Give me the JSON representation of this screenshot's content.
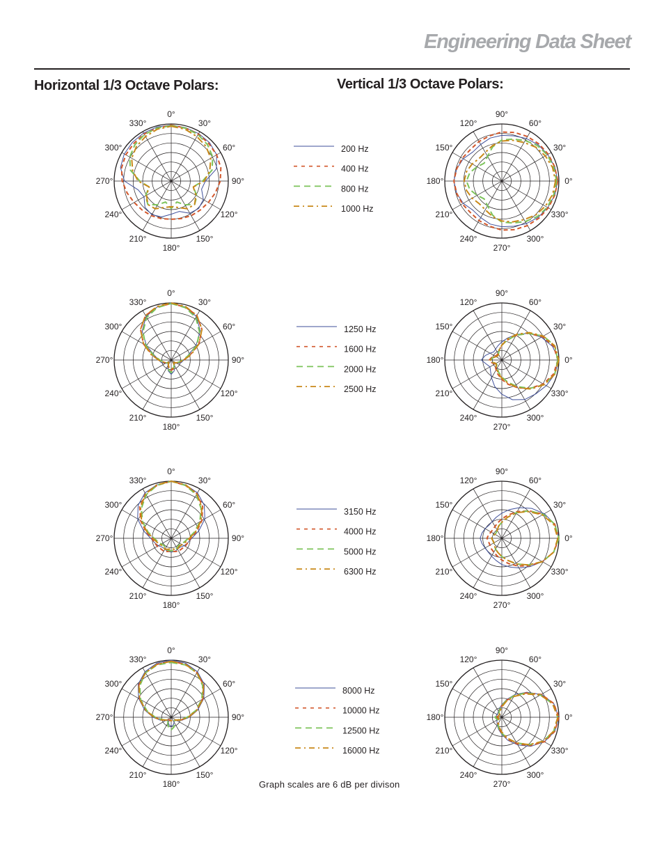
{
  "header": {
    "brand_title": "Engineering Data Sheet"
  },
  "sections": {
    "horizontal_title": "Horizontal 1/3 Octave Polars:",
    "vertical_title": "Vertical 1/3 Octave Polars:"
  },
  "footnote": "Graph scales are 6 dB per divison",
  "colors": {
    "series_1": "#3e4f9a",
    "series_2": "#d2572b",
    "series_3": "#7cc35a",
    "series_4": "#c8891a",
    "grid": "#231f20"
  },
  "horizontal_angle_labels": [
    "0°",
    "30°",
    "60°",
    "90°",
    "120°",
    "150°",
    "180°",
    "210°",
    "240°",
    "270°",
    "300°",
    "330°"
  ],
  "vertical_angle_labels": [
    "90°",
    "60°",
    "30°",
    "0°",
    "330°",
    "300°",
    "270°",
    "240°",
    "210°",
    "180°",
    "150°",
    "120°"
  ],
  "chart_data": [
    {
      "type": "polar",
      "orientation": "horizontal",
      "grid": true,
      "scale_db_per_division": 6,
      "series": [
        {
          "name": "200 Hz",
          "r": [
            0.98,
            0.97,
            0.96,
            0.95,
            0.92,
            0.82,
            0.6,
            0.55,
            0.65,
            0.68,
            0.65,
            0.55,
            0.58,
            0.65,
            0.68,
            0.65,
            0.55,
            0.6,
            0.82,
            0.92,
            0.95,
            0.96,
            0.97,
            0.98
          ]
        },
        {
          "name": "400 Hz",
          "r": [
            0.98,
            0.96,
            0.95,
            0.93,
            0.92,
            0.9,
            0.86,
            0.8,
            0.75,
            0.72,
            0.7,
            0.68,
            0.67,
            0.68,
            0.7,
            0.72,
            0.75,
            0.8,
            0.86,
            0.9,
            0.92,
            0.93,
            0.95,
            0.96
          ]
        },
        {
          "name": "800 Hz",
          "r": [
            0.97,
            0.96,
            0.94,
            0.9,
            0.84,
            0.74,
            0.55,
            0.4,
            0.52,
            0.58,
            0.48,
            0.38,
            0.48,
            0.38,
            0.48,
            0.58,
            0.52,
            0.4,
            0.55,
            0.74,
            0.84,
            0.9,
            0.94,
            0.96
          ]
        },
        {
          "name": "1000 Hz",
          "r": [
            0.96,
            0.94,
            0.9,
            0.86,
            0.8,
            0.7,
            0.58,
            0.4,
            0.5,
            0.58,
            0.56,
            0.48,
            0.45,
            0.48,
            0.56,
            0.58,
            0.5,
            0.4,
            0.58,
            0.7,
            0.8,
            0.86,
            0.9,
            0.94
          ]
        }
      ]
    },
    {
      "type": "polar",
      "orientation": "horizontal",
      "grid": true,
      "scale_db_per_division": 6,
      "series": [
        {
          "name": "1250 Hz",
          "r": [
            1.0,
            0.96,
            0.88,
            0.72,
            0.5,
            0.3,
            0.22,
            0.18,
            0.12,
            0.08,
            0.12,
            0.2,
            0.25,
            0.2,
            0.12,
            0.08,
            0.12,
            0.18,
            0.22,
            0.3,
            0.5,
            0.72,
            0.88,
            0.96
          ]
        },
        {
          "name": "1600 Hz",
          "r": [
            0.99,
            0.96,
            0.9,
            0.76,
            0.56,
            0.34,
            0.22,
            0.15,
            0.1,
            0.06,
            0.1,
            0.16,
            0.18,
            0.16,
            0.1,
            0.06,
            0.1,
            0.15,
            0.22,
            0.34,
            0.56,
            0.76,
            0.9,
            0.96
          ]
        },
        {
          "name": "2000 Hz",
          "r": [
            0.99,
            0.95,
            0.86,
            0.7,
            0.52,
            0.32,
            0.2,
            0.14,
            0.1,
            0.06,
            0.1,
            0.18,
            0.22,
            0.18,
            0.1,
            0.06,
            0.1,
            0.14,
            0.2,
            0.32,
            0.52,
            0.7,
            0.86,
            0.95
          ]
        },
        {
          "name": "2500 Hz",
          "r": [
            1.0,
            0.97,
            0.9,
            0.76,
            0.56,
            0.36,
            0.22,
            0.14,
            0.1,
            0.06,
            0.1,
            0.14,
            0.16,
            0.14,
            0.1,
            0.06,
            0.1,
            0.14,
            0.22,
            0.36,
            0.56,
            0.76,
            0.9,
            0.97
          ]
        }
      ]
    },
    {
      "type": "polar",
      "orientation": "horizontal",
      "grid": true,
      "scale_db_per_division": 6,
      "series": [
        {
          "name": "3150 Hz",
          "r": [
            1.0,
            0.97,
            0.92,
            0.82,
            0.68,
            0.5,
            0.36,
            0.3,
            0.26,
            0.22,
            0.22,
            0.24,
            0.24,
            0.24,
            0.22,
            0.22,
            0.26,
            0.3,
            0.36,
            0.5,
            0.68,
            0.82,
            0.92,
            0.97
          ]
        },
        {
          "name": "4000 Hz",
          "r": [
            1.0,
            0.96,
            0.9,
            0.78,
            0.62,
            0.46,
            0.34,
            0.3,
            0.28,
            0.26,
            0.26,
            0.24,
            0.22,
            0.24,
            0.26,
            0.26,
            0.28,
            0.3,
            0.34,
            0.46,
            0.62,
            0.78,
            0.9,
            0.96
          ]
        },
        {
          "name": "5000 Hz",
          "r": [
            1.0,
            0.96,
            0.88,
            0.74,
            0.58,
            0.42,
            0.3,
            0.24,
            0.2,
            0.18,
            0.2,
            0.22,
            0.22,
            0.22,
            0.2,
            0.18,
            0.2,
            0.24,
            0.3,
            0.42,
            0.58,
            0.74,
            0.88,
            0.96
          ]
        },
        {
          "name": "6300 Hz",
          "r": [
            1.0,
            0.97,
            0.9,
            0.76,
            0.6,
            0.44,
            0.32,
            0.26,
            0.22,
            0.2,
            0.22,
            0.2,
            0.18,
            0.2,
            0.22,
            0.2,
            0.22,
            0.26,
            0.32,
            0.44,
            0.6,
            0.76,
            0.9,
            0.97
          ]
        }
      ]
    },
    {
      "type": "polar",
      "orientation": "horizontal",
      "grid": true,
      "scale_db_per_division": 6,
      "series": [
        {
          "name": "8000 Hz",
          "r": [
            1.0,
            0.98,
            0.92,
            0.82,
            0.66,
            0.48,
            0.32,
            0.2,
            0.12,
            0.08,
            0.1,
            0.14,
            0.16,
            0.14,
            0.1,
            0.08,
            0.12,
            0.2,
            0.32,
            0.48,
            0.66,
            0.82,
            0.92,
            0.98
          ]
        },
        {
          "name": "10000 Hz",
          "r": [
            0.98,
            0.96,
            0.9,
            0.8,
            0.64,
            0.46,
            0.3,
            0.18,
            0.1,
            0.06,
            0.06,
            0.06,
            0.06,
            0.06,
            0.06,
            0.06,
            0.1,
            0.18,
            0.3,
            0.46,
            0.64,
            0.8,
            0.9,
            0.96
          ]
        },
        {
          "name": "12500 Hz",
          "r": [
            0.96,
            0.95,
            0.9,
            0.78,
            0.62,
            0.44,
            0.28,
            0.16,
            0.1,
            0.08,
            0.12,
            0.18,
            0.22,
            0.18,
            0.12,
            0.08,
            0.1,
            0.16,
            0.28,
            0.44,
            0.62,
            0.78,
            0.9,
            0.95
          ]
        },
        {
          "name": "16000 Hz",
          "r": [
            0.98,
            0.96,
            0.9,
            0.8,
            0.64,
            0.46,
            0.3,
            0.18,
            0.1,
            0.06,
            0.06,
            0.06,
            0.06,
            0.06,
            0.06,
            0.06,
            0.1,
            0.18,
            0.3,
            0.46,
            0.64,
            0.8,
            0.9,
            0.96
          ]
        }
      ]
    },
    {
      "type": "polar",
      "orientation": "vertical",
      "grid": true,
      "scale_db_per_division": 6,
      "series": [
        {
          "name": "200 Hz",
          "r": [
            0.98,
            0.96,
            0.93,
            0.9,
            0.86,
            0.82,
            0.8,
            0.78,
            0.74,
            0.72,
            0.78,
            0.82,
            0.84,
            0.82,
            0.78,
            0.72,
            0.74,
            0.78,
            0.8,
            0.82,
            0.86,
            0.9,
            0.93,
            0.96
          ]
        },
        {
          "name": "400 Hz",
          "r": [
            0.98,
            0.96,
            0.94,
            0.92,
            0.9,
            0.88,
            0.86,
            0.82,
            0.8,
            0.78,
            0.8,
            0.82,
            0.84,
            0.82,
            0.8,
            0.78,
            0.8,
            0.82,
            0.86,
            0.88,
            0.9,
            0.92,
            0.94,
            0.96
          ]
        },
        {
          "name": "800 Hz",
          "r": [
            0.96,
            0.94,
            0.92,
            0.88,
            0.82,
            0.76,
            0.72,
            0.62,
            0.5,
            0.44,
            0.5,
            0.58,
            0.62,
            0.58,
            0.5,
            0.44,
            0.5,
            0.62,
            0.72,
            0.76,
            0.82,
            0.88,
            0.92,
            0.94
          ]
        },
        {
          "name": "1000 Hz",
          "r": [
            0.94,
            0.92,
            0.88,
            0.84,
            0.78,
            0.74,
            0.7,
            0.64,
            0.58,
            0.56,
            0.6,
            0.64,
            0.66,
            0.64,
            0.6,
            0.56,
            0.58,
            0.64,
            0.7,
            0.74,
            0.78,
            0.84,
            0.88,
            0.92
          ]
        }
      ]
    },
    {
      "type": "polar",
      "orientation": "vertical",
      "grid": true,
      "scale_db_per_division": 6,
      "series": [
        {
          "name": "1250 Hz",
          "r": [
            1.0,
            0.96,
            0.9,
            0.84,
            0.8,
            0.72,
            0.6,
            0.48,
            0.36,
            0.28,
            0.24,
            0.28,
            0.36,
            0.3,
            0.24,
            0.2,
            0.22,
            0.26,
            0.32,
            0.4,
            0.52,
            0.66,
            0.8,
            0.92
          ]
        },
        {
          "name": "1600 Hz",
          "r": [
            0.98,
            0.94,
            0.84,
            0.7,
            0.56,
            0.44,
            0.34,
            0.26,
            0.2,
            0.16,
            0.14,
            0.18,
            0.22,
            0.18,
            0.14,
            0.12,
            0.14,
            0.18,
            0.26,
            0.36,
            0.5,
            0.66,
            0.82,
            0.94
          ]
        },
        {
          "name": "2000 Hz",
          "r": [
            0.98,
            0.96,
            0.86,
            0.7,
            0.54,
            0.4,
            0.3,
            0.22,
            0.16,
            0.12,
            0.12,
            0.16,
            0.2,
            0.16,
            0.12,
            0.1,
            0.12,
            0.18,
            0.26,
            0.36,
            0.5,
            0.66,
            0.84,
            0.96
          ]
        },
        {
          "name": "2500 Hz",
          "r": [
            1.0,
            0.96,
            0.86,
            0.72,
            0.56,
            0.42,
            0.32,
            0.24,
            0.18,
            0.14,
            0.12,
            0.16,
            0.2,
            0.16,
            0.12,
            0.1,
            0.12,
            0.18,
            0.26,
            0.38,
            0.52,
            0.68,
            0.84,
            0.96
          ]
        }
      ]
    },
    {
      "type": "polar",
      "orientation": "vertical",
      "grid": true,
      "scale_db_per_division": 6,
      "series": [
        {
          "name": "3150 Hz",
          "r": [
            1.0,
            0.94,
            0.82,
            0.7,
            0.6,
            0.52,
            0.46,
            0.4,
            0.36,
            0.34,
            0.34,
            0.36,
            0.38,
            0.36,
            0.34,
            0.32,
            0.34,
            0.38,
            0.44,
            0.52,
            0.62,
            0.74,
            0.86,
            0.96
          ]
        },
        {
          "name": "4000 Hz",
          "r": [
            1.0,
            0.94,
            0.82,
            0.68,
            0.56,
            0.46,
            0.38,
            0.32,
            0.28,
            0.26,
            0.24,
            0.24,
            0.26,
            0.24,
            0.22,
            0.22,
            0.24,
            0.28,
            0.34,
            0.42,
            0.54,
            0.68,
            0.84,
            0.96
          ]
        },
        {
          "name": "5000 Hz",
          "r": [
            1.0,
            0.94,
            0.82,
            0.66,
            0.52,
            0.4,
            0.32,
            0.26,
            0.22,
            0.18,
            0.16,
            0.16,
            0.18,
            0.16,
            0.14,
            0.14,
            0.16,
            0.22,
            0.28,
            0.38,
            0.52,
            0.68,
            0.84,
            0.96
          ]
        },
        {
          "name": "6300 Hz",
          "r": [
            0.98,
            0.94,
            0.82,
            0.66,
            0.52,
            0.4,
            0.32,
            0.26,
            0.22,
            0.18,
            0.16,
            0.16,
            0.18,
            0.16,
            0.14,
            0.14,
            0.16,
            0.22,
            0.28,
            0.38,
            0.52,
            0.66,
            0.82,
            0.94
          ]
        }
      ]
    },
    {
      "type": "polar",
      "orientation": "vertical",
      "grid": true,
      "scale_db_per_division": 6,
      "series": [
        {
          "name": "8000 Hz",
          "r": [
            1.0,
            0.96,
            0.86,
            0.72,
            0.56,
            0.42,
            0.3,
            0.22,
            0.16,
            0.12,
            0.1,
            0.1,
            0.1,
            0.1,
            0.1,
            0.1,
            0.12,
            0.16,
            0.22,
            0.32,
            0.46,
            0.62,
            0.8,
            0.94
          ]
        },
        {
          "name": "10000 Hz",
          "r": [
            1.0,
            0.96,
            0.86,
            0.7,
            0.54,
            0.4,
            0.28,
            0.2,
            0.14,
            0.1,
            0.08,
            0.08,
            0.08,
            0.08,
            0.08,
            0.08,
            0.1,
            0.14,
            0.2,
            0.3,
            0.44,
            0.6,
            0.8,
            0.94
          ]
        },
        {
          "name": "12500 Hz",
          "r": [
            0.98,
            0.94,
            0.84,
            0.68,
            0.52,
            0.38,
            0.28,
            0.2,
            0.14,
            0.1,
            0.08,
            0.1,
            0.12,
            0.1,
            0.08,
            0.08,
            0.1,
            0.14,
            0.2,
            0.3,
            0.44,
            0.6,
            0.78,
            0.92
          ]
        },
        {
          "name": "16000 Hz",
          "r": [
            0.98,
            0.94,
            0.84,
            0.68,
            0.52,
            0.38,
            0.26,
            0.18,
            0.12,
            0.08,
            0.06,
            0.06,
            0.06,
            0.06,
            0.06,
            0.06,
            0.08,
            0.12,
            0.18,
            0.28,
            0.42,
            0.58,
            0.78,
            0.92
          ]
        }
      ]
    }
  ]
}
